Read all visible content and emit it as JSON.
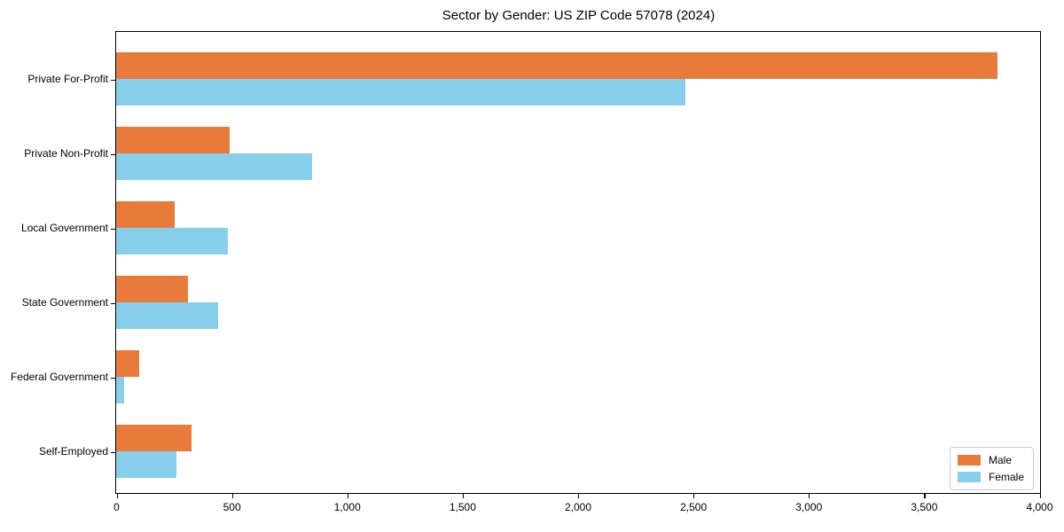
{
  "chart_data": {
    "type": "bar",
    "orientation": "horizontal",
    "title": "Sector by Gender: US ZIP Code 57078 (2024)",
    "categories": [
      "Private For-Profit",
      "Private Non-Profit",
      "Local Government",
      "State Government",
      "Federal Government",
      "Self-Employed"
    ],
    "series": [
      {
        "name": "Male",
        "color": "#E87A3C",
        "values": [
          3820,
          490,
          255,
          310,
          100,
          325
        ]
      },
      {
        "name": "Female",
        "color": "#87CEEB",
        "values": [
          2465,
          850,
          485,
          440,
          35,
          260
        ]
      }
    ],
    "xlabel": "",
    "ylabel": "",
    "xlim": [
      0,
      4000
    ],
    "xticks": [
      0,
      500,
      1000,
      1500,
      2000,
      2500,
      3000,
      3500,
      4000
    ],
    "xtick_labels": [
      "0",
      "500",
      "1,000",
      "1,500",
      "2,000",
      "2,500",
      "3,000",
      "3,500",
      "4,000"
    ],
    "grid": false,
    "legend_position": "lower right",
    "frame": "full-box",
    "background_color": "#ffffff",
    "text_color": "#000000"
  }
}
